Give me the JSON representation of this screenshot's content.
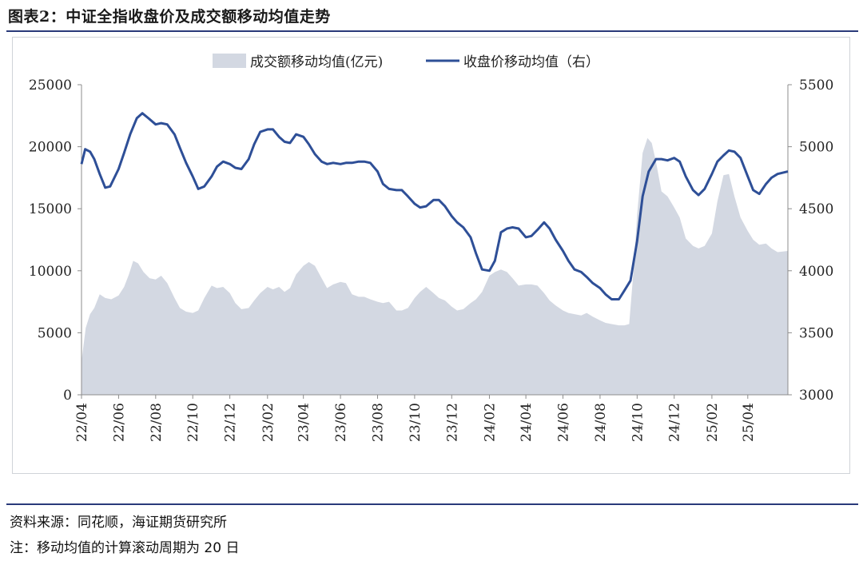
{
  "figure": {
    "title": "图表2：中证全指收盘价及成交额移动均值走势",
    "source": "资料来源：同花顺，海证期货研究所",
    "note": "注：移动均值的计算滚动周期为 20 日"
  },
  "colors": {
    "area": "#d3d8e2",
    "line": "#2e4f97",
    "rule": "#2a3a7a"
  },
  "chart_data": {
    "type": "area",
    "legend": {
      "placement": "top-center"
    },
    "x_tick_labels": [
      "22/04",
      "22/06",
      "22/08",
      "22/10",
      "22/12",
      "23/02",
      "23/04",
      "23/06",
      "23/08",
      "23/10",
      "23/12",
      "24/02",
      "24/04",
      "24/06",
      "24/08",
      "24/10",
      "24/12",
      "25/02",
      "25/04"
    ],
    "x_range": [
      "2022-04-01",
      "2025-06-06"
    ],
    "y_left": {
      "ylim": [
        0,
        25000
      ],
      "ticks": [
        0,
        5000,
        10000,
        15000,
        20000,
        25000
      ]
    },
    "y_right": {
      "ylim": [
        3000,
        5500
      ],
      "ticks": [
        3000,
        3500,
        4000,
        4500,
        5000,
        5500
      ]
    },
    "series": [
      {
        "name": "成交额移动均值(亿元)",
        "type": "area",
        "axis": "left",
        "points": [
          [
            "2022-04-01",
            2700
          ],
          [
            "2022-04-08",
            5400
          ],
          [
            "2022-04-15",
            6500
          ],
          [
            "2022-04-22",
            7000
          ],
          [
            "2022-05-01",
            8100
          ],
          [
            "2022-05-10",
            7800
          ],
          [
            "2022-05-20",
            7700
          ],
          [
            "2022-06-01",
            8000
          ],
          [
            "2022-06-10",
            8700
          ],
          [
            "2022-06-18",
            9700
          ],
          [
            "2022-06-25",
            10800
          ],
          [
            "2022-07-03",
            10600
          ],
          [
            "2022-07-12",
            9900
          ],
          [
            "2022-07-22",
            9400
          ],
          [
            "2022-08-01",
            9300
          ],
          [
            "2022-08-10",
            9600
          ],
          [
            "2022-08-20",
            9000
          ],
          [
            "2022-09-01",
            7800
          ],
          [
            "2022-09-10",
            7000
          ],
          [
            "2022-09-20",
            6700
          ],
          [
            "2022-10-01",
            6600
          ],
          [
            "2022-10-10",
            6800
          ],
          [
            "2022-10-20",
            7800
          ],
          [
            "2022-11-01",
            8800
          ],
          [
            "2022-11-10",
            8600
          ],
          [
            "2022-11-20",
            8700
          ],
          [
            "2022-12-01",
            8200
          ],
          [
            "2022-12-10",
            7400
          ],
          [
            "2022-12-20",
            6900
          ],
          [
            "2023-01-01",
            7000
          ],
          [
            "2023-01-10",
            7600
          ],
          [
            "2023-01-20",
            8200
          ],
          [
            "2023-02-01",
            8700
          ],
          [
            "2023-02-10",
            8500
          ],
          [
            "2023-02-20",
            8700
          ],
          [
            "2023-03-01",
            8300
          ],
          [
            "2023-03-10",
            8600
          ],
          [
            "2023-03-20",
            9700
          ],
          [
            "2023-04-01",
            10400
          ],
          [
            "2023-04-10",
            10700
          ],
          [
            "2023-04-20",
            10400
          ],
          [
            "2023-05-01",
            9400
          ],
          [
            "2023-05-10",
            8600
          ],
          [
            "2023-05-20",
            8900
          ],
          [
            "2023-06-01",
            9100
          ],
          [
            "2023-06-10",
            9000
          ],
          [
            "2023-06-20",
            8100
          ],
          [
            "2023-07-01",
            7900
          ],
          [
            "2023-07-10",
            7900
          ],
          [
            "2023-07-20",
            7700
          ],
          [
            "2023-08-01",
            7500
          ],
          [
            "2023-08-10",
            7400
          ],
          [
            "2023-08-20",
            7500
          ],
          [
            "2023-09-01",
            6800
          ],
          [
            "2023-09-10",
            6800
          ],
          [
            "2023-09-20",
            7000
          ],
          [
            "2023-10-01",
            7800
          ],
          [
            "2023-10-10",
            8300
          ],
          [
            "2023-10-20",
            8700
          ],
          [
            "2023-11-01",
            8200
          ],
          [
            "2023-11-10",
            7800
          ],
          [
            "2023-11-20",
            7600
          ],
          [
            "2023-12-01",
            7100
          ],
          [
            "2023-12-10",
            6800
          ],
          [
            "2023-12-20",
            6900
          ],
          [
            "2024-01-01",
            7400
          ],
          [
            "2024-01-10",
            7700
          ],
          [
            "2024-01-20",
            8300
          ],
          [
            "2024-02-01",
            9600
          ],
          [
            "2024-02-10",
            9900
          ],
          [
            "2024-02-20",
            10100
          ],
          [
            "2024-03-01",
            9900
          ],
          [
            "2024-03-10",
            9400
          ],
          [
            "2024-03-20",
            8800
          ],
          [
            "2024-04-01",
            8900
          ],
          [
            "2024-04-10",
            8900
          ],
          [
            "2024-04-20",
            8800
          ],
          [
            "2024-05-01",
            8200
          ],
          [
            "2024-05-10",
            7600
          ],
          [
            "2024-05-20",
            7200
          ],
          [
            "2024-06-01",
            6800
          ],
          [
            "2024-06-10",
            6600
          ],
          [
            "2024-06-20",
            6500
          ],
          [
            "2024-07-01",
            6400
          ],
          [
            "2024-07-10",
            6600
          ],
          [
            "2024-07-20",
            6300
          ],
          [
            "2024-08-01",
            6000
          ],
          [
            "2024-08-10",
            5800
          ],
          [
            "2024-08-20",
            5700
          ],
          [
            "2024-09-01",
            5600
          ],
          [
            "2024-09-10",
            5600
          ],
          [
            "2024-09-18",
            5700
          ],
          [
            "2024-09-25",
            10000
          ],
          [
            "2024-10-01",
            14500
          ],
          [
            "2024-10-10",
            19500
          ],
          [
            "2024-10-18",
            20700
          ],
          [
            "2024-10-25",
            20300
          ],
          [
            "2024-11-01",
            18800
          ],
          [
            "2024-11-10",
            16400
          ],
          [
            "2024-11-20",
            16000
          ],
          [
            "2024-12-01",
            15100
          ],
          [
            "2024-12-10",
            14300
          ],
          [
            "2024-12-20",
            12600
          ],
          [
            "2025-01-01",
            12000
          ],
          [
            "2025-01-10",
            11800
          ],
          [
            "2025-01-20",
            12000
          ],
          [
            "2025-02-01",
            13000
          ],
          [
            "2025-02-10",
            15600
          ],
          [
            "2025-02-20",
            17700
          ],
          [
            "2025-03-01",
            17800
          ],
          [
            "2025-03-10",
            16000
          ],
          [
            "2025-03-20",
            14300
          ],
          [
            "2025-04-01",
            13200
          ],
          [
            "2025-04-10",
            12500
          ],
          [
            "2025-04-20",
            12100
          ],
          [
            "2025-05-01",
            12200
          ],
          [
            "2025-05-10",
            11800
          ],
          [
            "2025-05-20",
            11500
          ],
          [
            "2025-06-06",
            11600
          ]
        ]
      },
      {
        "name": "收盘价移动均值（右）",
        "type": "line",
        "axis": "right",
        "points": [
          [
            "2022-04-01",
            4860
          ],
          [
            "2022-04-07",
            4980
          ],
          [
            "2022-04-15",
            4960
          ],
          [
            "2022-04-22",
            4900
          ],
          [
            "2022-05-01",
            4780
          ],
          [
            "2022-05-10",
            4670
          ],
          [
            "2022-05-18",
            4680
          ],
          [
            "2022-06-01",
            4820
          ],
          [
            "2022-06-10",
            4950
          ],
          [
            "2022-06-20",
            5100
          ],
          [
            "2022-07-01",
            5230
          ],
          [
            "2022-07-10",
            5270
          ],
          [
            "2022-07-20",
            5230
          ],
          [
            "2022-08-01",
            5180
          ],
          [
            "2022-08-10",
            5190
          ],
          [
            "2022-08-20",
            5180
          ],
          [
            "2022-09-01",
            5100
          ],
          [
            "2022-09-10",
            4990
          ],
          [
            "2022-09-20",
            4870
          ],
          [
            "2022-10-01",
            4760
          ],
          [
            "2022-10-10",
            4660
          ],
          [
            "2022-10-20",
            4680
          ],
          [
            "2022-11-01",
            4760
          ],
          [
            "2022-11-10",
            4840
          ],
          [
            "2022-11-20",
            4880
          ],
          [
            "2022-12-01",
            4860
          ],
          [
            "2022-12-10",
            4830
          ],
          [
            "2022-12-20",
            4820
          ],
          [
            "2023-01-01",
            4900
          ],
          [
            "2023-01-10",
            5020
          ],
          [
            "2023-01-20",
            5120
          ],
          [
            "2023-02-01",
            5140
          ],
          [
            "2023-02-10",
            5140
          ],
          [
            "2023-02-20",
            5080
          ],
          [
            "2023-03-01",
            5040
          ],
          [
            "2023-03-10",
            5030
          ],
          [
            "2023-03-20",
            5100
          ],
          [
            "2023-04-01",
            5080
          ],
          [
            "2023-04-10",
            5020
          ],
          [
            "2023-04-20",
            4940
          ],
          [
            "2023-05-01",
            4880
          ],
          [
            "2023-05-10",
            4860
          ],
          [
            "2023-05-20",
            4870
          ],
          [
            "2023-06-01",
            4860
          ],
          [
            "2023-06-10",
            4870
          ],
          [
            "2023-06-20",
            4870
          ],
          [
            "2023-07-01",
            4880
          ],
          [
            "2023-07-10",
            4880
          ],
          [
            "2023-07-20",
            4870
          ],
          [
            "2023-08-01",
            4800
          ],
          [
            "2023-08-10",
            4700
          ],
          [
            "2023-08-20",
            4660
          ],
          [
            "2023-09-01",
            4650
          ],
          [
            "2023-09-10",
            4650
          ],
          [
            "2023-09-20",
            4600
          ],
          [
            "2023-10-01",
            4540
          ],
          [
            "2023-10-10",
            4510
          ],
          [
            "2023-10-20",
            4520
          ],
          [
            "2023-11-01",
            4570
          ],
          [
            "2023-11-10",
            4570
          ],
          [
            "2023-11-20",
            4520
          ],
          [
            "2023-12-01",
            4440
          ],
          [
            "2023-12-10",
            4390
          ],
          [
            "2023-12-20",
            4350
          ],
          [
            "2024-01-01",
            4270
          ],
          [
            "2024-01-10",
            4140
          ],
          [
            "2024-01-20",
            4010
          ],
          [
            "2024-02-01",
            4000
          ],
          [
            "2024-02-10",
            4080
          ],
          [
            "2024-02-20",
            4310
          ],
          [
            "2024-03-01",
            4340
          ],
          [
            "2024-03-10",
            4350
          ],
          [
            "2024-03-20",
            4340
          ],
          [
            "2024-04-01",
            4270
          ],
          [
            "2024-04-10",
            4280
          ],
          [
            "2024-04-20",
            4330
          ],
          [
            "2024-05-01",
            4390
          ],
          [
            "2024-05-10",
            4340
          ],
          [
            "2024-05-20",
            4250
          ],
          [
            "2024-06-01",
            4160
          ],
          [
            "2024-06-10",
            4080
          ],
          [
            "2024-06-20",
            4010
          ],
          [
            "2024-07-01",
            3990
          ],
          [
            "2024-07-10",
            3950
          ],
          [
            "2024-07-20",
            3900
          ],
          [
            "2024-08-01",
            3860
          ],
          [
            "2024-08-10",
            3810
          ],
          [
            "2024-08-20",
            3770
          ],
          [
            "2024-09-01",
            3770
          ],
          [
            "2024-09-10",
            3840
          ],
          [
            "2024-09-20",
            3920
          ],
          [
            "2024-10-01",
            4240
          ],
          [
            "2024-10-10",
            4600
          ],
          [
            "2024-10-20",
            4800
          ],
          [
            "2024-11-01",
            4900
          ],
          [
            "2024-11-10",
            4900
          ],
          [
            "2024-11-20",
            4890
          ],
          [
            "2024-12-01",
            4910
          ],
          [
            "2024-12-10",
            4880
          ],
          [
            "2024-12-20",
            4760
          ],
          [
            "2025-01-01",
            4650
          ],
          [
            "2025-01-10",
            4610
          ],
          [
            "2025-01-20",
            4660
          ],
          [
            "2025-02-01",
            4780
          ],
          [
            "2025-02-10",
            4880
          ],
          [
            "2025-02-20",
            4930
          ],
          [
            "2025-03-01",
            4970
          ],
          [
            "2025-03-10",
            4960
          ],
          [
            "2025-03-20",
            4910
          ],
          [
            "2025-04-01",
            4760
          ],
          [
            "2025-04-10",
            4650
          ],
          [
            "2025-04-20",
            4620
          ],
          [
            "2025-05-01",
            4700
          ],
          [
            "2025-05-10",
            4750
          ],
          [
            "2025-05-20",
            4780
          ],
          [
            "2025-06-06",
            4800
          ]
        ]
      }
    ]
  }
}
